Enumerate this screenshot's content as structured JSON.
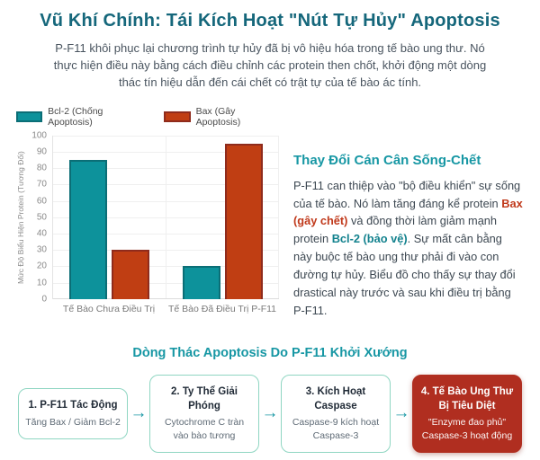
{
  "page": {
    "title": "Vũ Khí Chính: Tái Kích Hoạt \"Nút Tự Hủy\" Apoptosis",
    "intro": "P-F11 khôi phục lại chương trình tự hủy đã bị vô hiệu hóa trong tế bào ung thư. Nó thực hiện điều này bằng cách điều chỉnh các protein then chốt, khởi động một dòng thác tín hiệu dẫn đến cái chết có trật tự của tế bào ác tính."
  },
  "chart_data": {
    "type": "bar",
    "title": "",
    "categories": [
      "Tế Bào Chưa Điều Trị",
      "Tế Bào Đã Điều Trị P-F11"
    ],
    "series": [
      {
        "name": "Bcl-2 (Chống Apoptosis)",
        "values": [
          85,
          20
        ],
        "color": "#0d929b",
        "border": "#0b6e76"
      },
      {
        "name": "Bax (Gây Apoptosis)",
        "values": [
          30,
          95
        ],
        "color": "#c03e13",
        "border": "#8f2b1c"
      }
    ],
    "xlabel": "",
    "ylabel": "Mức Độ Biểu Hiện Protein (Tương Đối)",
    "ylim": [
      0,
      100
    ],
    "ytick_step": 10,
    "grid": true,
    "legend_position": "top"
  },
  "analysis": {
    "heading": "Thay Đổi Cán Cân Sống-Chết",
    "p1": "P-F11 can thiệp vào \"bộ điều khiển\" sự sống của tế bào. Nó làm tăng đáng kể protein ",
    "bax": "Bax (gây chết)",
    "p2": " và đồng thời làm giảm mạnh protein ",
    "bcl": "Bcl-2 (bảo vệ)",
    "p3": ". Sự mất cân bằng này buộc tế bào ung thư phải đi vào con đường tự hủy. Biểu đồ cho thấy sự thay đổi drastical này trước và sau khi điều trị bằng P-F11."
  },
  "cascade": {
    "heading": "Dòng Thác Apoptosis Do P-F11 Khởi Xướng",
    "arrow": "→",
    "steps": [
      {
        "title": "1. P-F11 Tác Động",
        "desc": "Tăng Bax / Giảm Bcl-2",
        "highlight": false
      },
      {
        "title": "2. Ty Thể Giải Phóng",
        "desc": "Cytochrome C tràn vào bào tương",
        "highlight": false
      },
      {
        "title": "3. Kích Hoạt Caspase",
        "desc": "Caspase-9 kích hoạt Caspase-3",
        "highlight": false
      },
      {
        "title": "4. Tế Bào Ung Thư Bị Tiêu Diệt",
        "desc": "\"Enzyme đao phủ\" Caspase-3 hoạt động",
        "highlight": true
      }
    ]
  },
  "colors": {
    "title_teal": "#15677b",
    "heading_teal": "#1797a4",
    "bar_teal": "#0d929b",
    "bar_red": "#c03e13",
    "highlight_red": "#b02e20",
    "step_border": "#8fd6c2"
  }
}
